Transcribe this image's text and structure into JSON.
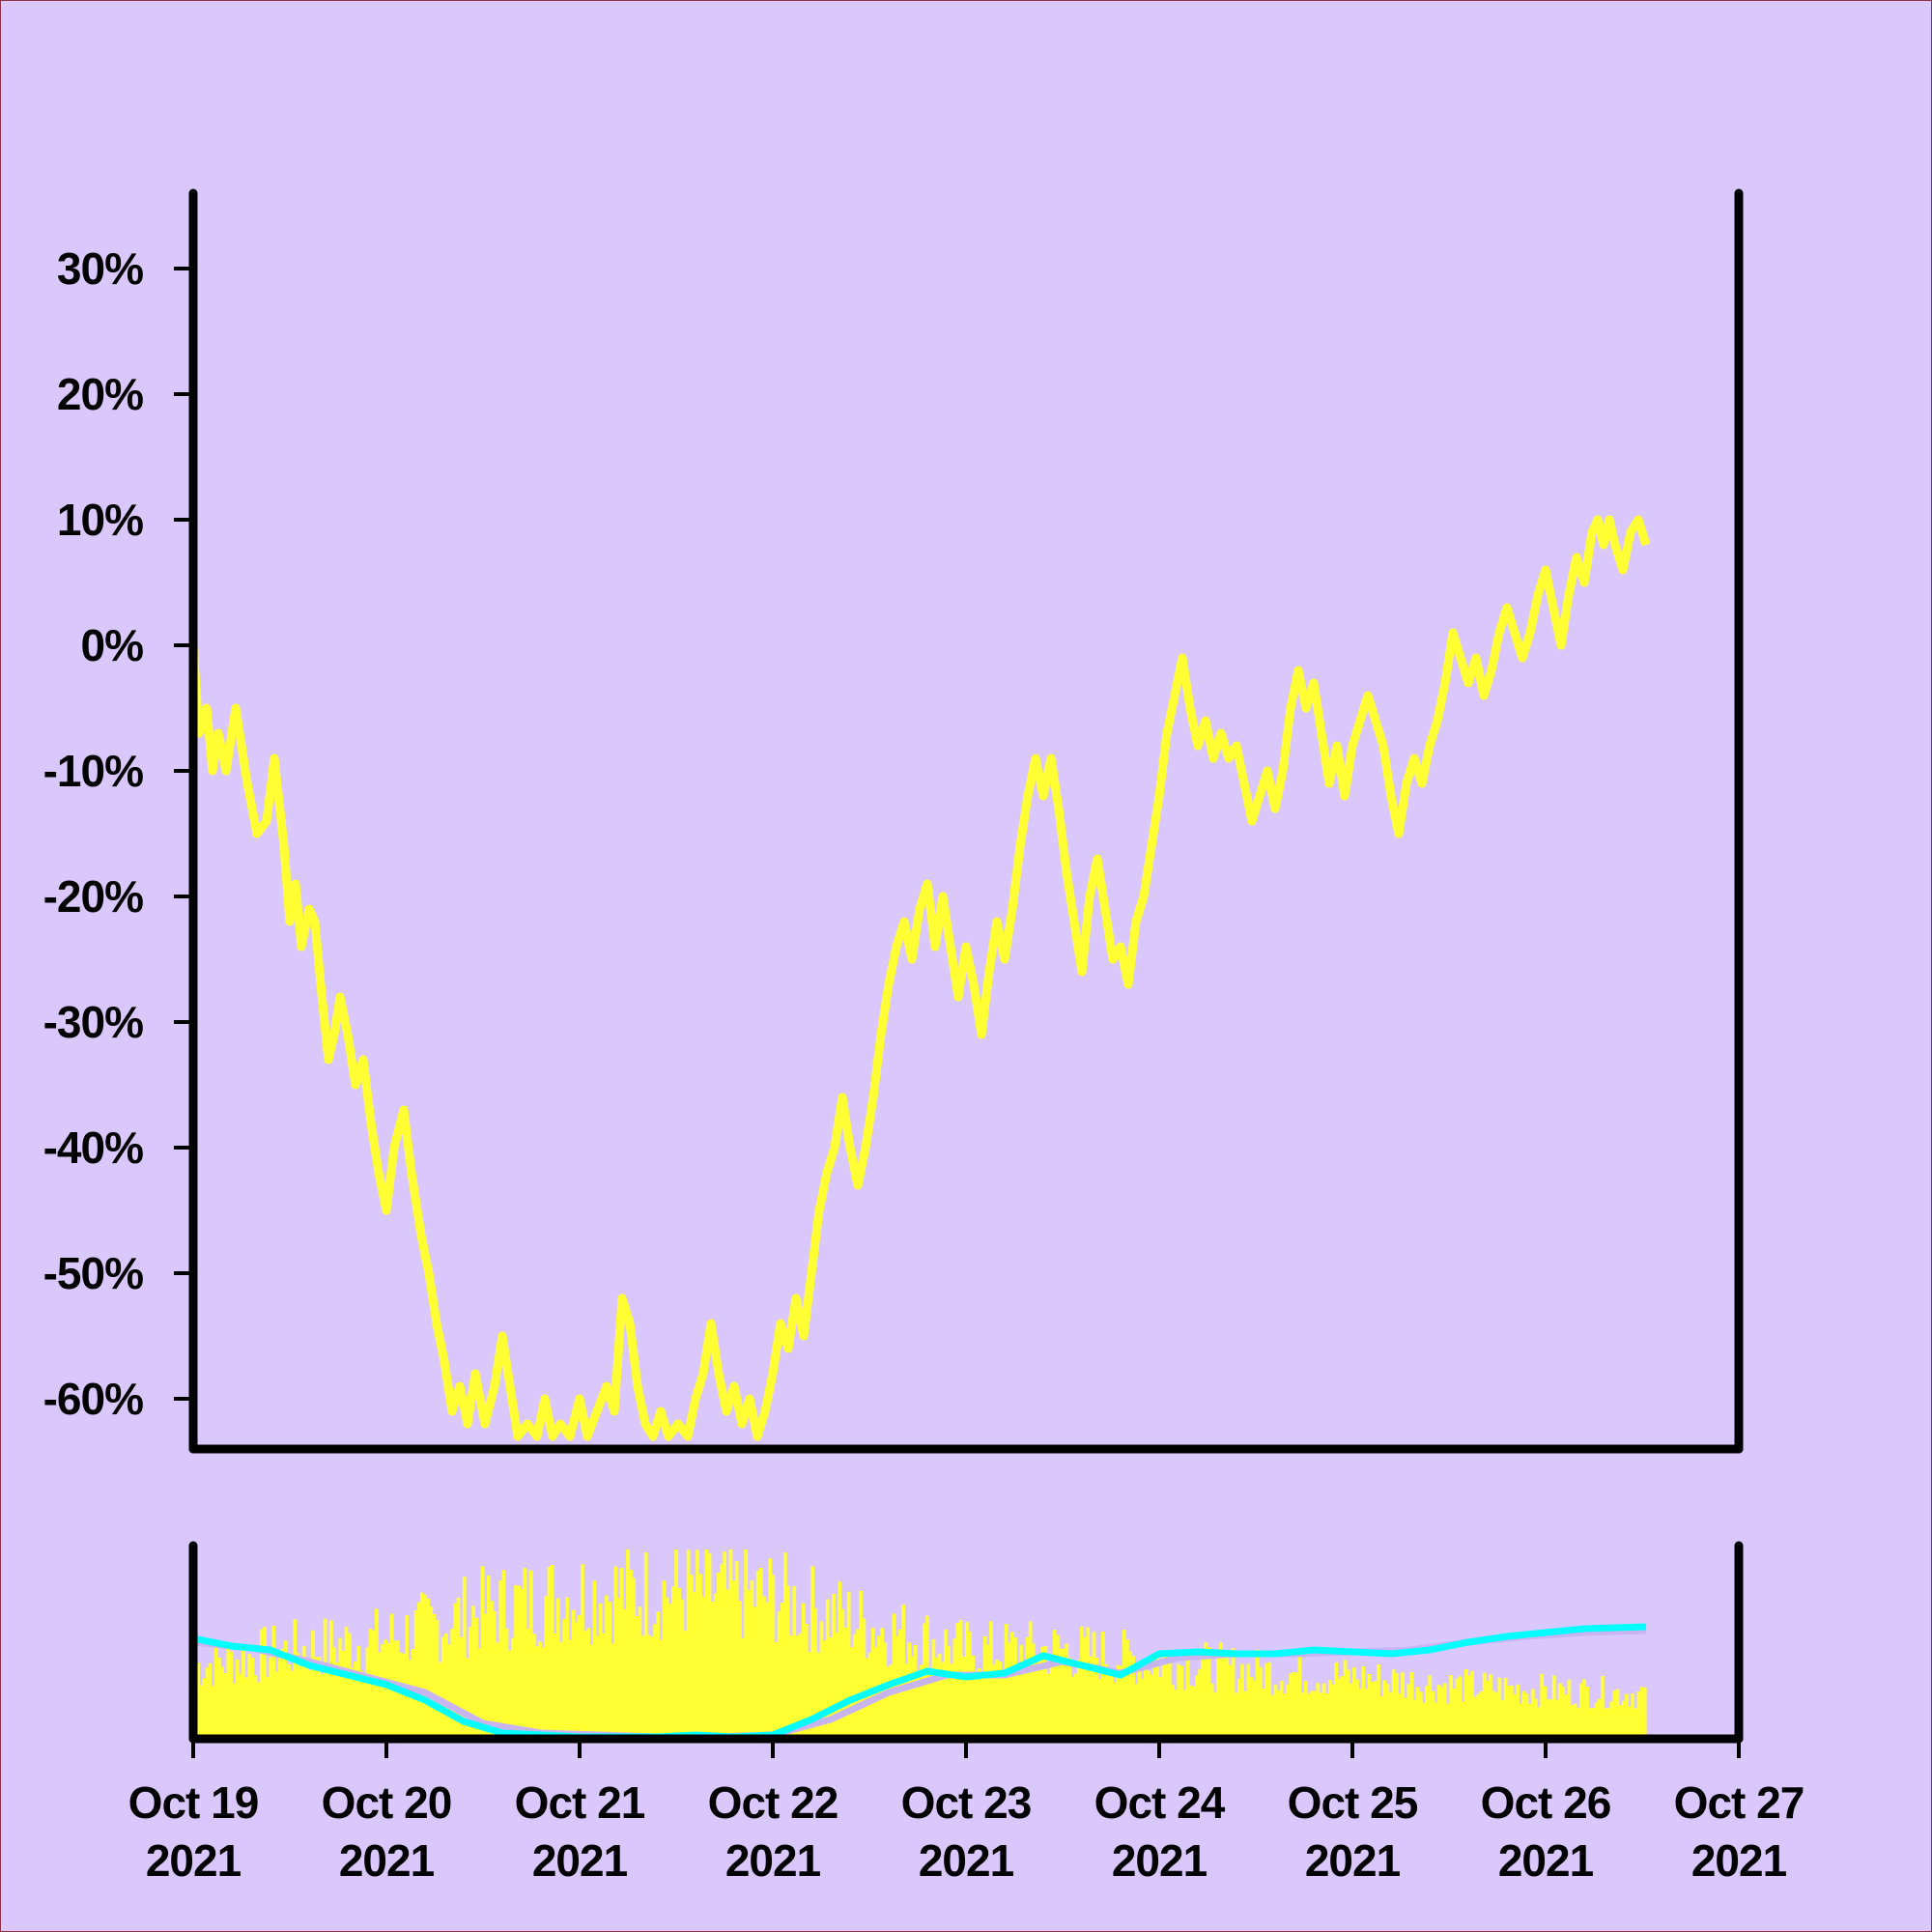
{
  "colors": {
    "background": "#dac8fc",
    "frame_border": "#8c2f4a",
    "axis": "#000000",
    "price_line": "#ffff33",
    "volume_bars": "#ffff33",
    "ma_fast": "#00ffff",
    "ma_slow": "#c8b4f0"
  },
  "chart_data": [
    {
      "type": "line",
      "panel": "main",
      "title": "",
      "xlabel": "",
      "ylabel": "",
      "ylim": [
        -64,
        36
      ],
      "yticks": [
        30,
        20,
        10,
        0,
        -10,
        -20,
        -30,
        -40,
        -50,
        -60
      ],
      "ytick_labels": [
        "30%",
        "20%",
        "10%",
        "0%",
        "-10%",
        "-20%",
        "-30%",
        "-40%",
        "-50%",
        "-60%"
      ],
      "xlim": [
        "2021-10-19",
        "2021-10-27"
      ],
      "grid": false,
      "series": [
        {
          "x_unit": "day offset from Oct 19 2021",
          "points": [
            [
              0.0,
              0
            ],
            [
              0.03,
              -7
            ],
            [
              0.07,
              -5
            ],
            [
              0.1,
              -10
            ],
            [
              0.13,
              -7
            ],
            [
              0.17,
              -10
            ],
            [
              0.22,
              -5
            ],
            [
              0.28,
              -11
            ],
            [
              0.33,
              -15
            ],
            [
              0.38,
              -14
            ],
            [
              0.42,
              -9
            ],
            [
              0.47,
              -16
            ],
            [
              0.5,
              -22
            ],
            [
              0.53,
              -19
            ],
            [
              0.56,
              -24
            ],
            [
              0.6,
              -21
            ],
            [
              0.63,
              -22
            ],
            [
              0.66,
              -27
            ],
            [
              0.7,
              -33
            ],
            [
              0.73,
              -31
            ],
            [
              0.76,
              -28
            ],
            [
              0.8,
              -31
            ],
            [
              0.84,
              -35
            ],
            [
              0.88,
              -33
            ],
            [
              0.92,
              -38
            ],
            [
              0.96,
              -42
            ],
            [
              1.0,
              -45
            ],
            [
              1.04,
              -40
            ],
            [
              1.09,
              -37
            ],
            [
              1.13,
              -42
            ],
            [
              1.18,
              -47
            ],
            [
              1.22,
              -50
            ],
            [
              1.26,
              -54
            ],
            [
              1.3,
              -57
            ],
            [
              1.34,
              -61
            ],
            [
              1.38,
              -59
            ],
            [
              1.42,
              -62
            ],
            [
              1.46,
              -58
            ],
            [
              1.51,
              -62
            ],
            [
              1.56,
              -59
            ],
            [
              1.6,
              -55
            ],
            [
              1.64,
              -59
            ],
            [
              1.68,
              -63
            ],
            [
              1.73,
              -62
            ],
            [
              1.78,
              -63
            ],
            [
              1.82,
              -60
            ],
            [
              1.86,
              -63
            ],
            [
              1.9,
              -62
            ],
            [
              1.95,
              -63
            ],
            [
              2.0,
              -60
            ],
            [
              2.04,
              -63
            ],
            [
              2.09,
              -61
            ],
            [
              2.14,
              -59
            ],
            [
              2.18,
              -61
            ],
            [
              2.22,
              -52
            ],
            [
              2.26,
              -54
            ],
            [
              2.3,
              -59
            ],
            [
              2.34,
              -62
            ],
            [
              2.38,
              -63
            ],
            [
              2.42,
              -61
            ],
            [
              2.46,
              -63
            ],
            [
              2.51,
              -62
            ],
            [
              2.56,
              -63
            ],
            [
              2.6,
              -60
            ],
            [
              2.64,
              -58
            ],
            [
              2.68,
              -54
            ],
            [
              2.72,
              -58
            ],
            [
              2.76,
              -61
            ],
            [
              2.8,
              -59
            ],
            [
              2.84,
              -62
            ],
            [
              2.88,
              -60
            ],
            [
              2.92,
              -63
            ],
            [
              2.96,
              -61
            ],
            [
              3.0,
              -58
            ],
            [
              3.04,
              -54
            ],
            [
              3.08,
              -56
            ],
            [
              3.12,
              -52
            ],
            [
              3.16,
              -55
            ],
            [
              3.2,
              -50
            ],
            [
              3.24,
              -45
            ],
            [
              3.28,
              -42
            ],
            [
              3.32,
              -40
            ],
            [
              3.36,
              -36
            ],
            [
              3.4,
              -40
            ],
            [
              3.44,
              -43
            ],
            [
              3.48,
              -40
            ],
            [
              3.52,
              -36
            ],
            [
              3.56,
              -31
            ],
            [
              3.6,
              -27
            ],
            [
              3.64,
              -24
            ],
            [
              3.68,
              -22
            ],
            [
              3.72,
              -25
            ],
            [
              3.76,
              -21
            ],
            [
              3.8,
              -19
            ],
            [
              3.84,
              -24
            ],
            [
              3.88,
              -20
            ],
            [
              3.92,
              -24
            ],
            [
              3.96,
              -28
            ],
            [
              4.0,
              -24
            ],
            [
              4.04,
              -27
            ],
            [
              4.08,
              -31
            ],
            [
              4.12,
              -26
            ],
            [
              4.16,
              -22
            ],
            [
              4.2,
              -25
            ],
            [
              4.24,
              -21
            ],
            [
              4.28,
              -16
            ],
            [
              4.32,
              -12
            ],
            [
              4.36,
              -9
            ],
            [
              4.4,
              -12
            ],
            [
              4.44,
              -9
            ],
            [
              4.48,
              -13
            ],
            [
              4.52,
              -18
            ],
            [
              4.56,
              -22
            ],
            [
              4.6,
              -26
            ],
            [
              4.64,
              -20
            ],
            [
              4.68,
              -17
            ],
            [
              4.72,
              -21
            ],
            [
              4.76,
              -25
            ],
            [
              4.8,
              -24
            ],
            [
              4.84,
              -27
            ],
            [
              4.88,
              -22
            ],
            [
              4.92,
              -20
            ],
            [
              4.96,
              -16
            ],
            [
              5.0,
              -12
            ],
            [
              5.04,
              -7
            ],
            [
              5.08,
              -4
            ],
            [
              5.12,
              -1
            ],
            [
              5.16,
              -5
            ],
            [
              5.2,
              -8
            ],
            [
              5.24,
              -6
            ],
            [
              5.28,
              -9
            ],
            [
              5.32,
              -7
            ],
            [
              5.36,
              -9
            ],
            [
              5.4,
              -8
            ],
            [
              5.44,
              -11
            ],
            [
              5.48,
              -14
            ],
            [
              5.52,
              -12
            ],
            [
              5.56,
              -10
            ],
            [
              5.6,
              -13
            ],
            [
              5.64,
              -10
            ],
            [
              5.68,
              -5
            ],
            [
              5.72,
              -2
            ],
            [
              5.76,
              -5
            ],
            [
              5.8,
              -3
            ],
            [
              5.84,
              -7
            ],
            [
              5.88,
              -11
            ],
            [
              5.92,
              -8
            ],
            [
              5.96,
              -12
            ],
            [
              6.0,
              -8
            ],
            [
              6.04,
              -6
            ],
            [
              6.08,
              -4
            ],
            [
              6.12,
              -6
            ],
            [
              6.16,
              -8
            ],
            [
              6.2,
              -12
            ],
            [
              6.24,
              -15
            ],
            [
              6.28,
              -11
            ],
            [
              6.32,
              -9
            ],
            [
              6.36,
              -11
            ],
            [
              6.4,
              -8
            ],
            [
              6.44,
              -6
            ],
            [
              6.48,
              -3
            ],
            [
              6.52,
              1
            ],
            [
              6.56,
              -1
            ],
            [
              6.6,
              -3
            ],
            [
              6.64,
              -1
            ],
            [
              6.68,
              -4
            ],
            [
              6.72,
              -2
            ],
            [
              6.76,
              1
            ],
            [
              6.8,
              3
            ],
            [
              6.84,
              1
            ],
            [
              6.88,
              -1
            ],
            [
              6.92,
              1
            ],
            [
              6.96,
              4
            ],
            [
              7.0,
              6
            ],
            [
              7.04,
              3
            ],
            [
              7.08,
              0
            ],
            [
              7.12,
              4
            ],
            [
              7.16,
              7
            ],
            [
              7.2,
              5
            ],
            [
              7.24,
              9
            ],
            [
              7.27,
              10
            ],
            [
              7.3,
              8
            ],
            [
              7.33,
              10
            ],
            [
              7.36,
              8
            ],
            [
              7.4,
              6
            ],
            [
              7.44,
              9
            ],
            [
              7.48,
              10
            ],
            [
              7.52,
              8
            ]
          ]
        }
      ]
    },
    {
      "type": "bar",
      "panel": "volume",
      "title": "",
      "xlabel": "",
      "ylabel": "",
      "grid": false,
      "x_tick_labels": [
        {
          "line1": "Oct 19",
          "line2": "2021"
        },
        {
          "line1": "Oct 20",
          "line2": "2021"
        },
        {
          "line1": "Oct 21",
          "line2": "2021"
        },
        {
          "line1": "Oct 22",
          "line2": "2021"
        },
        {
          "line1": "Oct 23",
          "line2": "2021"
        },
        {
          "line1": "Oct 24",
          "line2": "2021"
        },
        {
          "line1": "Oct 25",
          "line2": "2021"
        },
        {
          "line1": "Oct 26",
          "line2": "2021"
        },
        {
          "line1": "Oct 27",
          "line2": "2021"
        }
      ],
      "volume_profile": {
        "x_unit": "day offset from Oct 19 2021",
        "envelope": [
          [
            0,
            0.45
          ],
          [
            0.5,
            0.55
          ],
          [
            1.0,
            0.62
          ],
          [
            1.5,
            0.8
          ],
          [
            2.0,
            0.9
          ],
          [
            2.5,
            0.92
          ],
          [
            3.0,
            0.88
          ],
          [
            3.5,
            0.7
          ],
          [
            4.0,
            0.55
          ],
          [
            4.5,
            0.55
          ],
          [
            5.0,
            0.48
          ],
          [
            5.5,
            0.42
          ],
          [
            6.0,
            0.38
          ],
          [
            6.5,
            0.33
          ],
          [
            7.0,
            0.3
          ],
          [
            7.52,
            0.28
          ]
        ],
        "count": 480
      },
      "moving_averages": [
        {
          "name": "",
          "color_key": "ma_fast",
          "points": [
            [
              0,
              0.52
            ],
            [
              0.2,
              0.48
            ],
            [
              0.4,
              0.46
            ],
            [
              0.6,
              0.38
            ],
            [
              0.8,
              0.33
            ],
            [
              1.0,
              0.28
            ],
            [
              1.2,
              0.2
            ],
            [
              1.4,
              0.09
            ],
            [
              1.6,
              0.03
            ],
            [
              1.8,
              0.02
            ],
            [
              2.0,
              0.01
            ],
            [
              2.2,
              0.01
            ],
            [
              2.4,
              0.01
            ],
            [
              2.6,
              0.02
            ],
            [
              2.8,
              0.01
            ],
            [
              3.0,
              0.02
            ],
            [
              3.2,
              0.1
            ],
            [
              3.4,
              0.2
            ],
            [
              3.6,
              0.28
            ],
            [
              3.8,
              0.35
            ],
            [
              4.0,
              0.32
            ],
            [
              4.2,
              0.34
            ],
            [
              4.4,
              0.43
            ],
            [
              4.6,
              0.38
            ],
            [
              4.8,
              0.33
            ],
            [
              5.0,
              0.44
            ],
            [
              5.2,
              0.45
            ],
            [
              5.4,
              0.44
            ],
            [
              5.6,
              0.44
            ],
            [
              5.8,
              0.46
            ],
            [
              6.0,
              0.45
            ],
            [
              6.2,
              0.44
            ],
            [
              6.4,
              0.46
            ],
            [
              6.6,
              0.5
            ],
            [
              6.8,
              0.53
            ],
            [
              7.0,
              0.55
            ],
            [
              7.2,
              0.57
            ],
            [
              7.52,
              0.58
            ]
          ]
        },
        {
          "name": "",
          "color_key": "ma_slow",
          "points": [
            [
              0,
              0.5
            ],
            [
              0.3,
              0.47
            ],
            [
              0.6,
              0.4
            ],
            [
              0.9,
              0.32
            ],
            [
              1.2,
              0.24
            ],
            [
              1.5,
              0.08
            ],
            [
              1.8,
              0.03
            ],
            [
              2.1,
              0.02
            ],
            [
              2.4,
              0.01
            ],
            [
              2.7,
              0.01
            ],
            [
              3.0,
              0.02
            ],
            [
              3.3,
              0.1
            ],
            [
              3.6,
              0.24
            ],
            [
              3.9,
              0.33
            ],
            [
              4.2,
              0.33
            ],
            [
              4.5,
              0.4
            ],
            [
              4.8,
              0.34
            ],
            [
              5.1,
              0.42
            ],
            [
              5.4,
              0.44
            ],
            [
              5.7,
              0.44
            ],
            [
              6.0,
              0.45
            ],
            [
              6.3,
              0.46
            ],
            [
              6.6,
              0.5
            ],
            [
              6.9,
              0.53
            ],
            [
              7.2,
              0.55
            ],
            [
              7.52,
              0.56
            ]
          ]
        }
      ]
    }
  ]
}
